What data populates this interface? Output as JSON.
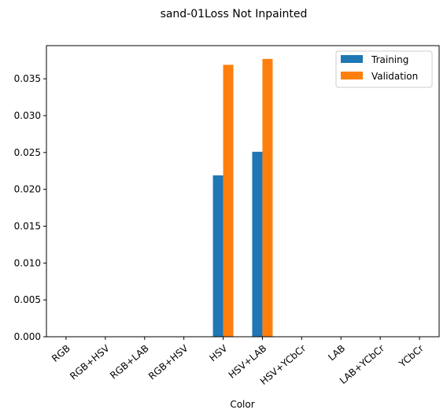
{
  "chart_data": {
    "type": "bar",
    "title": "sand-01Loss Not Inpainted",
    "xlabel": "Color",
    "ylabel": "",
    "categories": [
      "RGB",
      "RGB+HSV",
      "RGB+LAB",
      "RGB+HSV",
      "HSV",
      "HSV+LAB",
      "HSV+YCbCr",
      "LAB",
      "LAB+YCbCr",
      "YCbCr"
    ],
    "series": [
      {
        "name": "Training",
        "color": "#1f77b4",
        "values": [
          0,
          0,
          0,
          0,
          0.0219,
          0.0251,
          0,
          0,
          0,
          0
        ]
      },
      {
        "name": "Validation",
        "color": "#ff7f0e",
        "values": [
          0,
          0,
          0,
          0,
          0.0369,
          0.0377,
          0,
          0,
          0,
          0
        ]
      }
    ],
    "ylim": [
      0,
      0.0395
    ],
    "yticks": [
      "0.000",
      "0.005",
      "0.010",
      "0.015",
      "0.020",
      "0.025",
      "0.030",
      "0.035"
    ],
    "grid": false,
    "legend_position": "top-right"
  }
}
